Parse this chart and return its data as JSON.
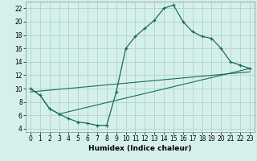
{
  "xlabel": "Humidex (Indice chaleur)",
  "background_color": "#d5f0ec",
  "grid_color": "#aed4cc",
  "line_color": "#1a6b5a",
  "xlim": [
    -0.5,
    23.5
  ],
  "ylim": [
    3.5,
    23
  ],
  "xticks": [
    0,
    1,
    2,
    3,
    4,
    5,
    6,
    7,
    8,
    9,
    10,
    11,
    12,
    13,
    14,
    15,
    16,
    17,
    18,
    19,
    20,
    21,
    22,
    23
  ],
  "yticks": [
    4,
    6,
    8,
    10,
    12,
    14,
    16,
    18,
    20,
    22
  ],
  "line1_x": [
    0,
    1,
    2,
    3,
    4,
    5,
    6,
    7,
    8,
    9,
    10,
    11,
    12,
    13,
    14,
    15,
    16,
    17,
    18,
    19,
    20,
    21,
    22,
    23
  ],
  "line1_y": [
    10,
    9,
    7,
    6.2,
    5.5,
    5.0,
    4.8,
    4.5,
    4.5,
    9.5,
    16,
    17.8,
    19,
    20.2,
    22.0,
    22.5,
    20,
    18.5,
    17.8,
    17.5,
    16,
    14,
    13.5,
    13
  ],
  "line2_x": [
    0,
    1,
    2,
    3,
    23
  ],
  "line2_y": [
    10,
    9,
    7,
    6.2,
    13
  ],
  "line3_x": [
    0,
    23
  ],
  "line3_y": [
    9.5,
    12.5
  ],
  "fontsize_tick": 5.5,
  "fontsize_xlabel": 6.5
}
